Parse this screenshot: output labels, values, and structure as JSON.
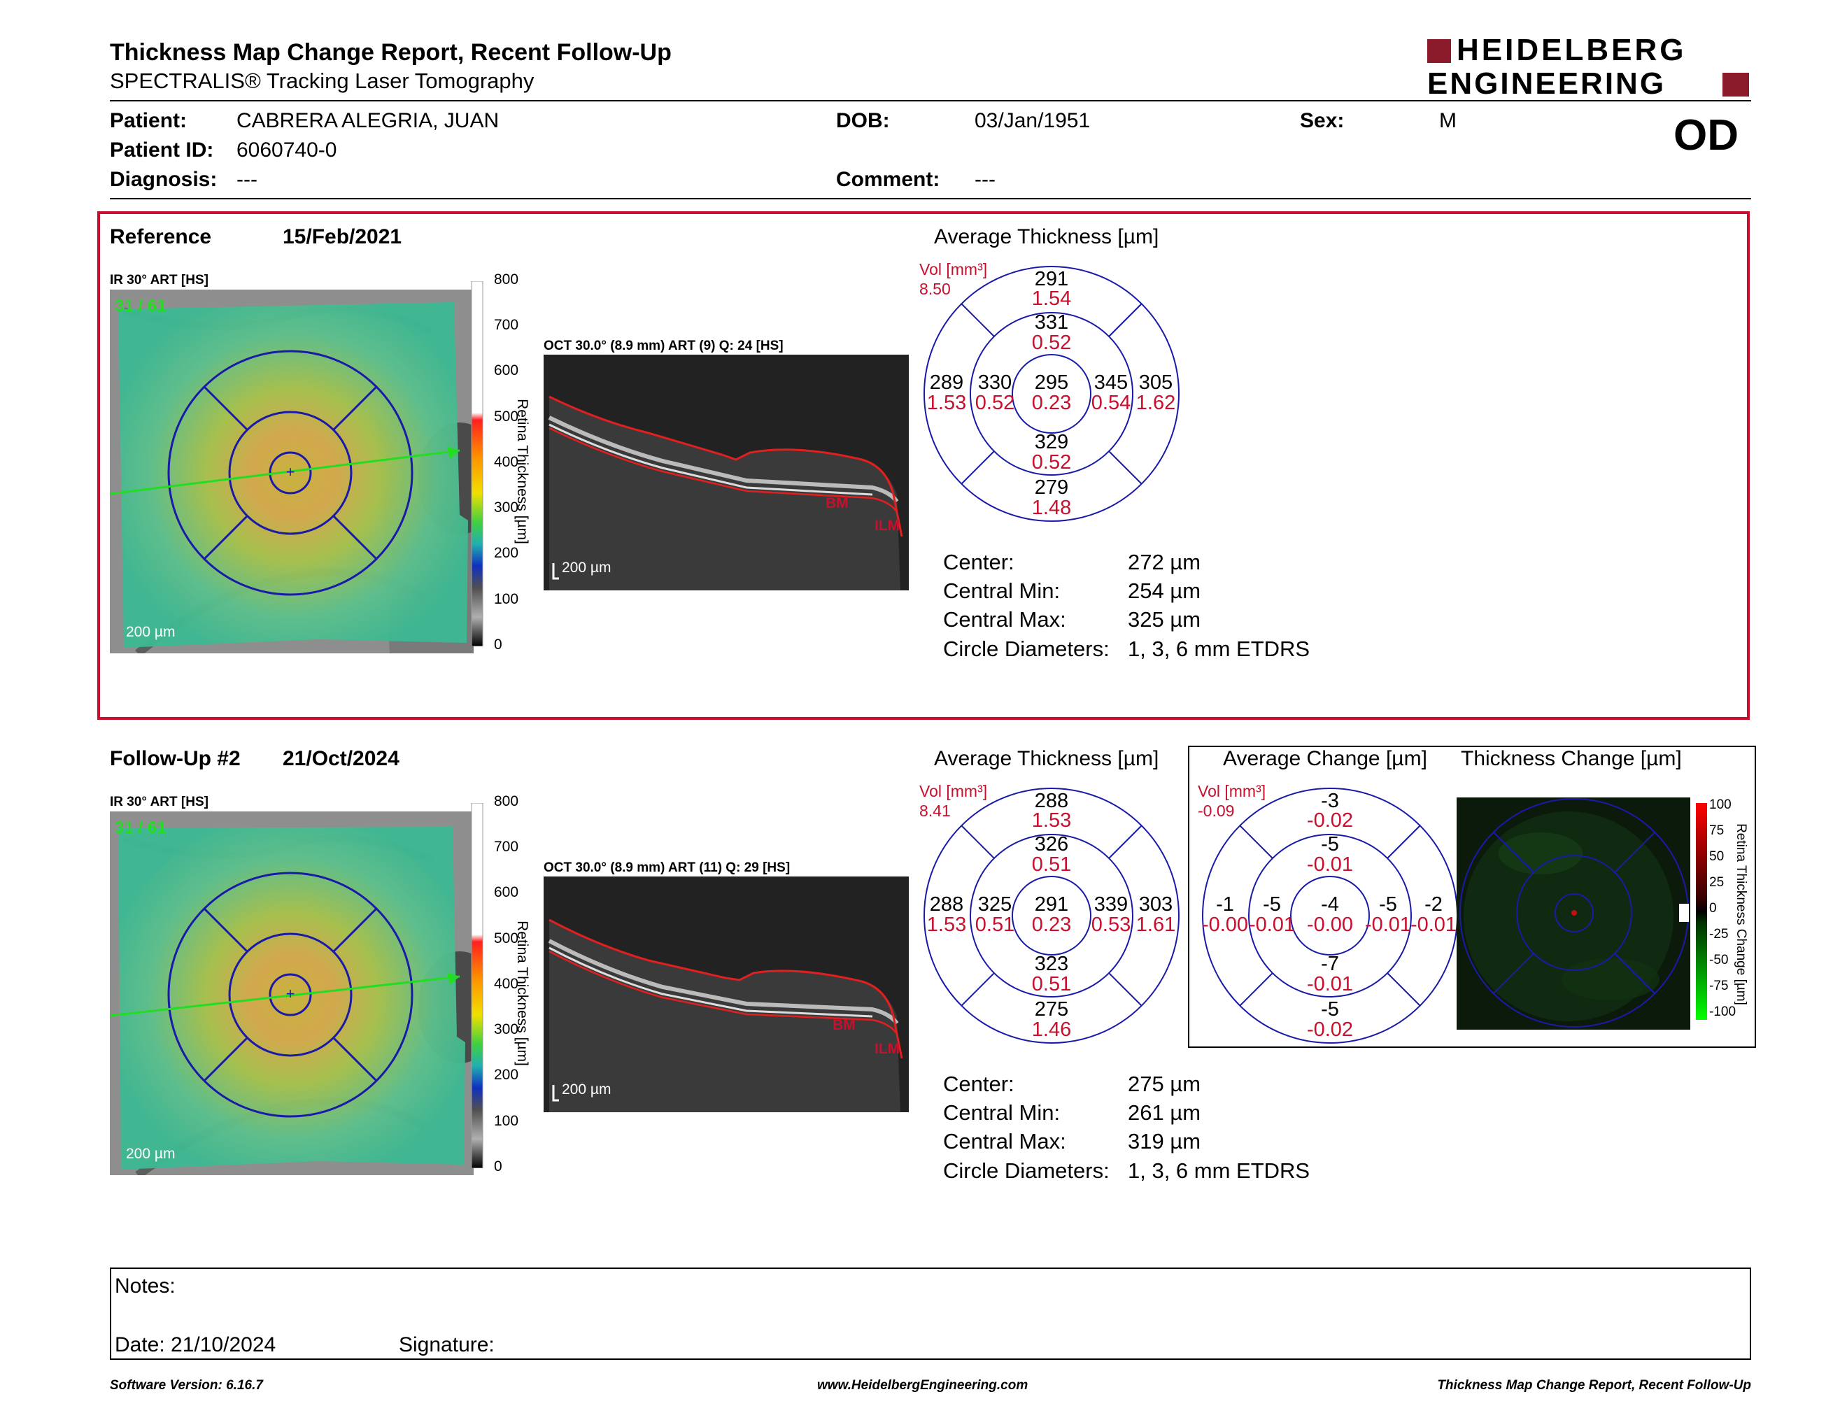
{
  "header": {
    "title": "Thickness Map Change Report, Recent Follow-Up",
    "subtitle": "SPECTRALIS® Tracking Laser Tomography",
    "logo_line1": "HEIDELBERG",
    "logo_line2": "ENGINEERING",
    "eye": "OD",
    "colors": {
      "brand": "#8b1a2b"
    }
  },
  "patient": {
    "patient_label": "Patient:",
    "patient_value": "CABRERA ALEGRIA, JUAN",
    "id_label": "Patient ID:",
    "id_value": "6060740-0",
    "diagnosis_label": "Diagnosis:",
    "diagnosis_value": "---",
    "dob_label": "DOB:",
    "dob_value": "03/Jan/1951",
    "comment_label": "Comment:",
    "comment_value": "---",
    "sex_label": "Sex:",
    "sex_value": "M"
  },
  "reference": {
    "label": "Reference",
    "date": "15/Feb/2021",
    "ir_label": "IR 30° ART [HS]",
    "ir_quality": "31 / 61",
    "ir_scale": "200 µm",
    "oct_label": "OCT 30.0° (8.9 mm) ART (9) Q: 24 [HS]",
    "oct_scale": "200 µm",
    "avg_title": "Average Thickness [µm]",
    "vol_label": "Vol [mm³]",
    "vol_value": "8.50",
    "grid": {
      "center": [
        "295",
        "0.23"
      ],
      "inner_sup": [
        "331",
        "0.52"
      ],
      "inner_inf": [
        "329",
        "0.52"
      ],
      "inner_nas": [
        "330",
        "0.52"
      ],
      "inner_tmp": [
        "345",
        "0.54"
      ],
      "outer_sup": [
        "291",
        "1.54"
      ],
      "outer_inf": [
        "279",
        "1.48"
      ],
      "outer_nas": [
        "289",
        "1.53"
      ],
      "outer_tmp": [
        "305",
        "1.62"
      ]
    },
    "stats": [
      [
        "Center:",
        "272 µm"
      ],
      [
        "Central Min:",
        "254 µm"
      ],
      [
        "Central Max:",
        "325 µm"
      ],
      [
        "Circle Diameters:",
        "1, 3, 6 mm ETDRS"
      ]
    ]
  },
  "followup": {
    "label": "Follow-Up #2",
    "date": "21/Oct/2024",
    "ir_label": "IR 30° ART [HS]",
    "ir_quality": "31 / 61",
    "ir_scale": "200 µm",
    "oct_label": "OCT 30.0° (8.9 mm) ART (11) Q: 29 [HS]",
    "oct_scale": "200 µm",
    "avg_title": "Average Thickness [µm]",
    "vol_label": "Vol [mm³]",
    "vol_value": "8.41",
    "grid": {
      "center": [
        "291",
        "0.23"
      ],
      "inner_sup": [
        "326",
        "0.51"
      ],
      "inner_inf": [
        "323",
        "0.51"
      ],
      "inner_nas": [
        "325",
        "0.51"
      ],
      "inner_tmp": [
        "339",
        "0.53"
      ],
      "outer_sup": [
        "288",
        "1.53"
      ],
      "outer_inf": [
        "275",
        "1.46"
      ],
      "outer_nas": [
        "288",
        "1.53"
      ],
      "outer_tmp": [
        "303",
        "1.61"
      ]
    },
    "stats": [
      [
        "Center:",
        "275 µm"
      ],
      [
        "Central Min:",
        "261 µm"
      ],
      [
        "Central Max:",
        "319 µm"
      ],
      [
        "Circle Diameters:",
        "1, 3, 6 mm ETDRS"
      ]
    ],
    "change_title": "Average Change [µm]",
    "change_vol_value": "-0.09",
    "change_grid": {
      "center": [
        "-4",
        "-0.00"
      ],
      "inner_sup": [
        "-5",
        "-0.01"
      ],
      "inner_inf": [
        "-7",
        "-0.01"
      ],
      "inner_nas": [
        "-5",
        "-0.01"
      ],
      "inner_tmp": [
        "-5",
        "-0.01"
      ],
      "outer_sup": [
        "-3",
        "-0.02"
      ],
      "outer_inf": [
        "-5",
        "-0.02"
      ],
      "outer_nas": [
        "-1",
        "-0.00"
      ],
      "outer_tmp": [
        "-2",
        "-0.01"
      ]
    },
    "thick_change_title": "Thickness Change [µm]",
    "change_scale_title": "Retina Thickness Change [µm]",
    "change_scale_ticks": [
      "100",
      "75",
      "50",
      "25",
      "0",
      "-25",
      "-50",
      "-75",
      "-100"
    ]
  },
  "thickness_scale": {
    "title": "Retina Thickness [µm]",
    "ticks": [
      "800",
      "700",
      "600",
      "500",
      "400",
      "300",
      "200",
      "100",
      "0"
    ]
  },
  "oct_markers": {
    "bm": "BM",
    "ilm": "ILM"
  },
  "notes": {
    "notes_label": "Notes:",
    "date_label": "Date: 21/10/2024",
    "signature_label": "Signature:"
  },
  "footer": {
    "version": "Software Version: 6.16.7",
    "url": "www.HeidelbergEngineering.com",
    "report": "Thickness Map Change Report, Recent Follow-Up"
  }
}
